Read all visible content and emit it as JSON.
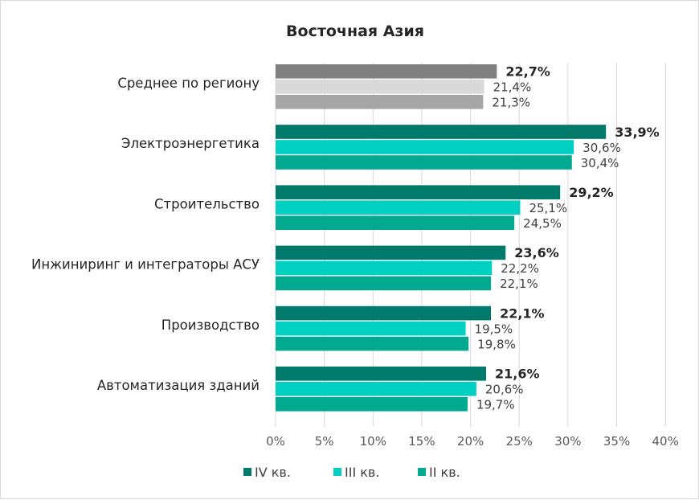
{
  "chart_data": {
    "type": "bar",
    "orientation": "horizontal",
    "title": "Восточная Азия",
    "categories": [
      "Среднее по региону",
      "Электроэнергетика",
      "Строительство",
      "Инжиниринг и интеграторы АСУ",
      "Производство",
      "Автоматизация зданий"
    ],
    "series": [
      {
        "name": "IV кв.",
        "color": "#007a6b",
        "average_color": "#808080",
        "labels": [
          "22,7%",
          "33,9%",
          "29,2%",
          "23,6%",
          "22,1%",
          "21,6%"
        ],
        "values": [
          22.7,
          33.9,
          29.2,
          23.6,
          22.1,
          21.6
        ]
      },
      {
        "name": "III кв.",
        "color": "#00cfc2",
        "average_color": "#d9d9d9",
        "labels": [
          "21,4%",
          "30,6%",
          "25,1%",
          "22,2%",
          "19,5%",
          "20,6%"
        ],
        "values": [
          21.4,
          30.6,
          25.1,
          22.2,
          19.5,
          20.6
        ]
      },
      {
        "name": "II кв.",
        "color": "#00a98f",
        "average_color": "#a6a6a6",
        "labels": [
          "21,3%",
          "30,4%",
          "24,5%",
          "22,1%",
          "19,8%",
          "19,7%"
        ],
        "values": [
          21.3,
          30.4,
          24.5,
          22.1,
          19.8,
          19.7
        ]
      }
    ],
    "xlim": [
      0,
      40
    ],
    "xticks": [
      "0%",
      "5%",
      "10%",
      "15%",
      "20%",
      "25%",
      "30%",
      "35%",
      "40%"
    ],
    "grid": "vertical",
    "legend_position": "bottom"
  }
}
